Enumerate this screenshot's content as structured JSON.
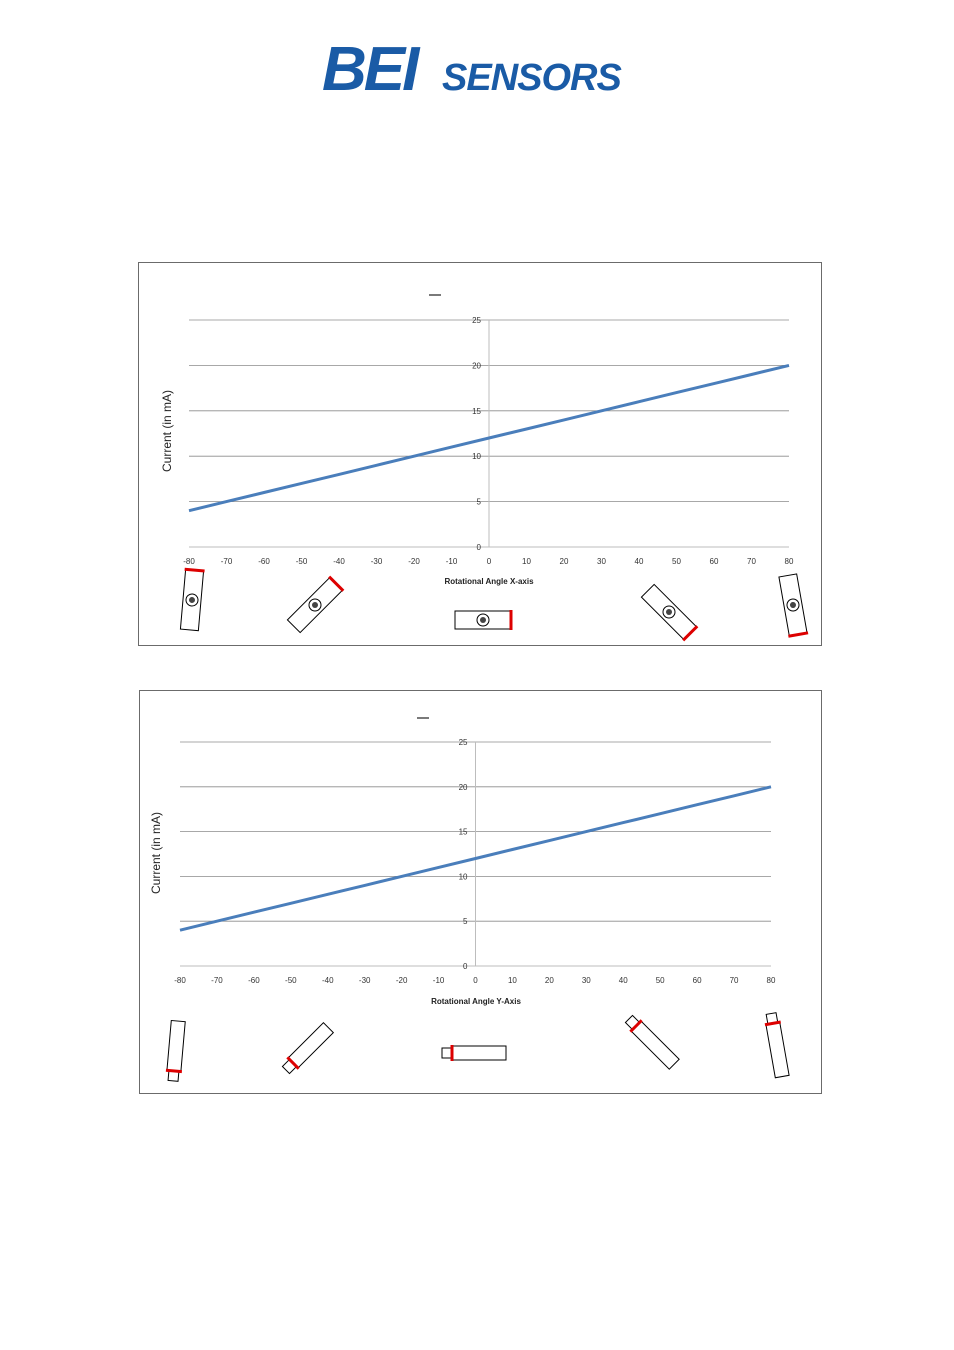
{
  "brand": {
    "logo_bold": "BEI",
    "logo_rest": "SENSORS",
    "color": "#1a5ba6"
  },
  "chart_data": [
    {
      "type": "line",
      "title": "",
      "xlabel": "Rotational Angle X-axis",
      "ylabel": "Current (in mA)",
      "xlim": [
        -80,
        80
      ],
      "ylim": [
        0,
        25
      ],
      "x_ticks": [
        -80,
        -70,
        -60,
        -50,
        -40,
        -30,
        -20,
        -10,
        0,
        10,
        20,
        30,
        40,
        50,
        60,
        70,
        80
      ],
      "y_ticks": [
        0,
        5,
        10,
        15,
        20,
        25
      ],
      "grid": true,
      "line_color": "#4a7ebb",
      "series": [
        {
          "x": [
            -80,
            -70,
            -60,
            -50,
            -40,
            -30,
            -20,
            -10,
            0,
            10,
            20,
            30,
            40,
            50,
            60,
            70,
            80
          ],
          "values": [
            4,
            5,
            6,
            7,
            8,
            9,
            10,
            11,
            12,
            13,
            14,
            15,
            16,
            17,
            18,
            19,
            20
          ]
        }
      ],
      "illustrations": [
        "sensor-tilt-minus-80",
        "sensor-tilt-minus-45",
        "sensor-level",
        "sensor-tilt-plus-45",
        "sensor-tilt-plus-80"
      ]
    },
    {
      "type": "line",
      "title": "",
      "xlabel": "Rotational Angle Y-Axis",
      "ylabel": "Current (in mA)",
      "xlim": [
        -80,
        80
      ],
      "ylim": [
        0,
        25
      ],
      "x_ticks": [
        -80,
        -70,
        -60,
        -50,
        -40,
        -30,
        -20,
        -10,
        0,
        10,
        20,
        30,
        40,
        50,
        60,
        70,
        80
      ],
      "y_ticks": [
        0,
        5,
        10,
        15,
        20,
        25
      ],
      "grid": true,
      "line_color": "#4a7ebb",
      "series": [
        {
          "x": [
            -80,
            -70,
            -60,
            -50,
            -40,
            -30,
            -20,
            -10,
            0,
            10,
            20,
            30,
            40,
            50,
            60,
            70,
            80
          ],
          "values": [
            4,
            5,
            6,
            7,
            8,
            9,
            10,
            11,
            12,
            13,
            14,
            15,
            16,
            17,
            18,
            19,
            20
          ]
        }
      ],
      "illustrations": [
        "sensor-side-minus-80",
        "sensor-side-minus-45",
        "sensor-side-level",
        "sensor-side-plus-45",
        "sensor-side-plus-80"
      ]
    }
  ]
}
